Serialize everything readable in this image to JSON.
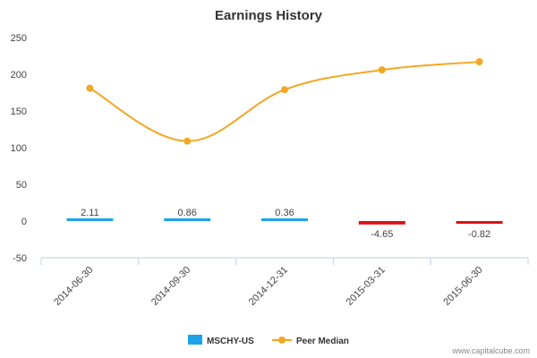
{
  "chart_data": {
    "type": "bar",
    "title": "Earnings History",
    "categories": [
      "2014-06-30",
      "2014-09-30",
      "2014-12-31",
      "2015-03-31",
      "2015-06-30"
    ],
    "ylim": [
      -50,
      250
    ],
    "yticks": [
      250,
      200,
      150,
      100,
      50,
      0,
      -50
    ],
    "grid": false,
    "legend_position": "bottom-center",
    "series": [
      {
        "name": "MSCHY-US",
        "kind": "bar",
        "color": "#1aa3e8",
        "negative_color": "#dd1111",
        "values": [
          2.11,
          0.86,
          0.36,
          -4.65,
          -0.82
        ],
        "data_labels": [
          "2.11",
          "0.86",
          "0.36",
          "-4.65",
          "-0.82"
        ]
      },
      {
        "name": "Peer Median",
        "kind": "line",
        "color": "#f5a623",
        "values": [
          181,
          109,
          179,
          206,
          217
        ]
      }
    ]
  },
  "credit": "www.capitalcube.com"
}
